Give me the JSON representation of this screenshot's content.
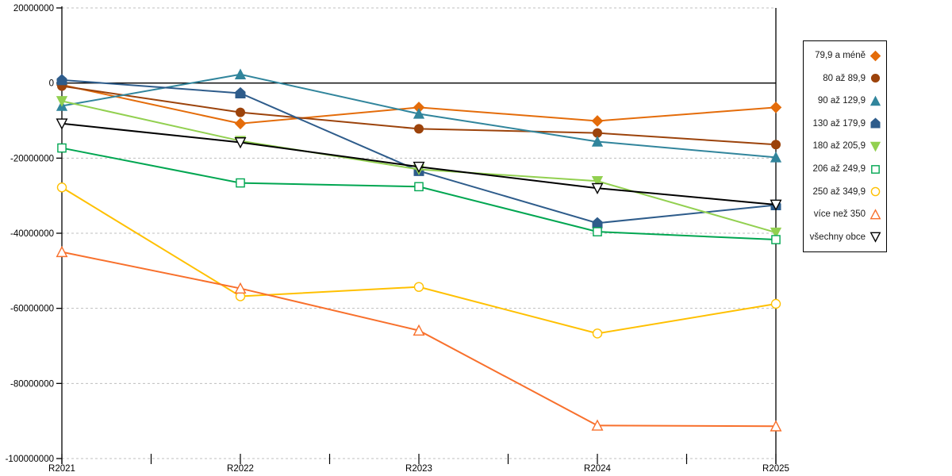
{
  "chart_data": {
    "type": "line",
    "title": "",
    "categories": [
      "R2021",
      "R2022",
      "R2023",
      "R2024",
      "R2025"
    ],
    "series": [
      {
        "name": "79,9 a méně",
        "color": "#E46C0A",
        "marker": "diamond",
        "fill": "solid",
        "values": [
          -500000,
          -10800000,
          -6500000,
          -10100000,
          -6500000
        ]
      },
      {
        "name": "80 až 89,9",
        "color": "#9C430B",
        "marker": "circle",
        "fill": "solid",
        "values": [
          -800000,
          -7800000,
          -12200000,
          -13300000,
          -16400000
        ]
      },
      {
        "name": "90 až 129,9",
        "color": "#31859C",
        "marker": "triangle-up",
        "fill": "solid",
        "values": [
          -6100000,
          2300000,
          -8200000,
          -15600000,
          -19800000
        ]
      },
      {
        "name": "130 až 179,9",
        "color": "#2E5C8B",
        "marker": "pentagon",
        "fill": "solid",
        "values": [
          800000,
          -2700000,
          -23400000,
          -37300000,
          -32500000
        ]
      },
      {
        "name": "180 až 205,9",
        "color": "#92D050",
        "marker": "triangle-down",
        "fill": "solid",
        "values": [
          -4800000,
          -15400000,
          -23000000,
          -26100000,
          -39800000
        ]
      },
      {
        "name": "206 až 249,9",
        "color": "#00A651",
        "marker": "square",
        "fill": "hollow",
        "values": [
          -17300000,
          -26600000,
          -27600000,
          -39600000,
          -41700000
        ]
      },
      {
        "name": "250 až 349,9",
        "color": "#FFC000",
        "marker": "circle",
        "fill": "hollow",
        "values": [
          -27800000,
          -56800000,
          -54300000,
          -66700000,
          -58800000
        ]
      },
      {
        "name": "více než 350",
        "color": "#F8702C",
        "marker": "triangle-up",
        "fill": "hollow",
        "values": [
          -45000000,
          -54700000,
          -65900000,
          -91200000,
          -91400000
        ]
      },
      {
        "name": "všechny obce",
        "color": "#000000",
        "marker": "triangle-down",
        "fill": "hollow",
        "values": [
          -10800000,
          -15800000,
          -22300000,
          -28000000,
          -32400000
        ]
      }
    ],
    "xlabel": "",
    "ylabel": "",
    "ylim": [
      -100000000,
      20000000
    ],
    "y_tick_values": [
      20000000,
      0,
      -20000000,
      -40000000,
      -60000000,
      -80000000,
      -100000000
    ],
    "y_tick_labels": [
      "20000000",
      "0",
      "-20000000",
      "-40000000",
      "-60000000",
      "-80000000",
      "-100000000"
    ],
    "grid": {
      "on": true,
      "style": "dashed",
      "color": "#BFBFBF",
      "zero_line_color": "#000000"
    },
    "legend_position": "right",
    "axis_text_color": "#000000"
  }
}
